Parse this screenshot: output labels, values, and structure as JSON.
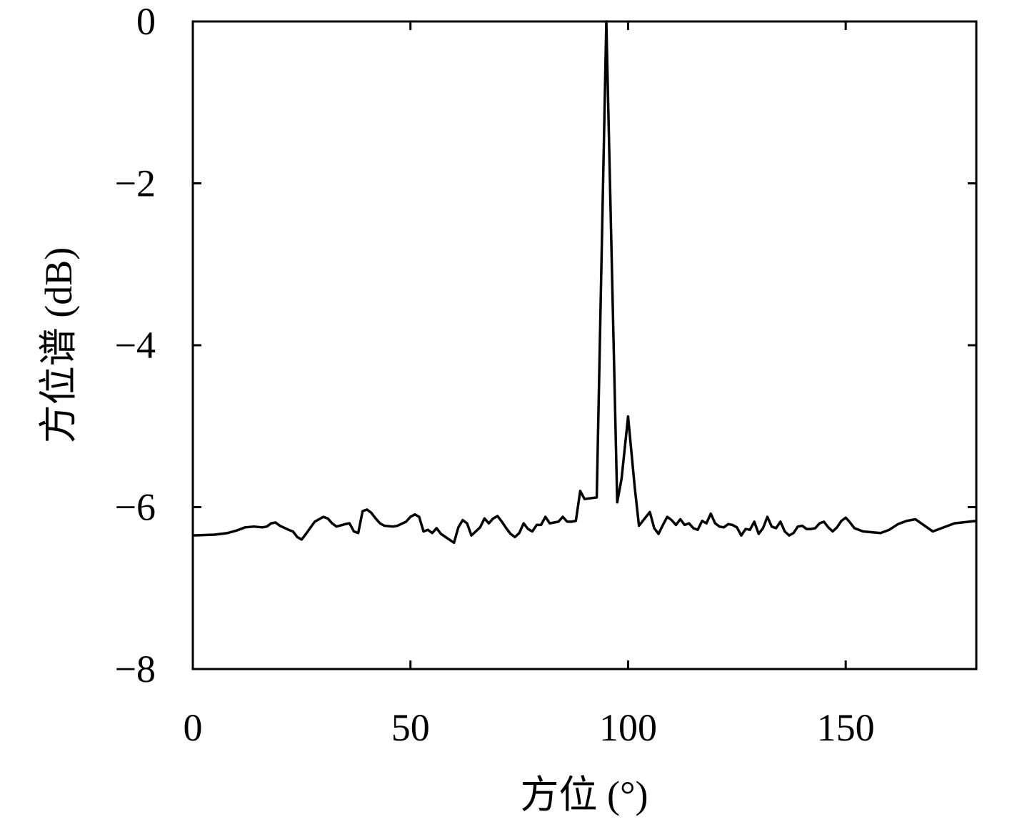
{
  "chart_data": {
    "type": "line",
    "xlabel": "方位 (°)",
    "ylabel": "方位谱 (dB)",
    "xlim": [
      0,
      180
    ],
    "ylim": [
      -8,
      0
    ],
    "xticks": [
      0,
      50,
      100,
      150
    ],
    "yticks": [
      {
        "value": -8,
        "label": "−8"
      },
      {
        "value": -6,
        "label": "−6"
      },
      {
        "value": -4,
        "label": "−4"
      },
      {
        "value": -2,
        "label": "−2"
      },
      0
    ],
    "grid": false,
    "series": [
      {
        "color": "#000000",
        "x": [
          0,
          5,
          8,
          10,
          12,
          14,
          16,
          17,
          18,
          19,
          20,
          22,
          23,
          24,
          25,
          26,
          28,
          29,
          30,
          31,
          32,
          33,
          35,
          36,
          37,
          38,
          39,
          40,
          41,
          42,
          43,
          44,
          46,
          47,
          49,
          50,
          51,
          52,
          53,
          54,
          55,
          56,
          57,
          60,
          61,
          62,
          63,
          64,
          65,
          66,
          67,
          68,
          69,
          70,
          71,
          72,
          73,
          74,
          75,
          76,
          77,
          78,
          79,
          80,
          81,
          82,
          83,
          84,
          85,
          86,
          87,
          88,
          89,
          90,
          92.8,
          95,
          97.5,
          98.5,
          100,
          101.5,
          102.5,
          105,
          106,
          107,
          108,
          109,
          110,
          111,
          112,
          113,
          114,
          115,
          116,
          117,
          118,
          119,
          120,
          121,
          122,
          123,
          124,
          125,
          126,
          127,
          128,
          129,
          130,
          131,
          132,
          133,
          134,
          135,
          136,
          137,
          138,
          139,
          140,
          141,
          142,
          143,
          144,
          145,
          146,
          147,
          148,
          149,
          150,
          151,
          152,
          154,
          156,
          158,
          160,
          162,
          164,
          166,
          170,
          175,
          180
        ],
        "values": [
          -6.35,
          -6.34,
          -6.32,
          -6.29,
          -6.25,
          -6.24,
          -6.25,
          -6.24,
          -6.2,
          -6.19,
          -6.23,
          -6.28,
          -6.3,
          -6.37,
          -6.4,
          -6.33,
          -6.18,
          -6.15,
          -6.12,
          -6.14,
          -6.2,
          -6.24,
          -6.21,
          -6.2,
          -6.3,
          -6.32,
          -6.05,
          -6.03,
          -6.07,
          -6.14,
          -6.2,
          -6.23,
          -6.24,
          -6.23,
          -6.18,
          -6.12,
          -6.09,
          -6.12,
          -6.3,
          -6.28,
          -6.32,
          -6.26,
          -6.33,
          -6.44,
          -6.25,
          -6.16,
          -6.2,
          -6.35,
          -6.3,
          -6.25,
          -6.14,
          -6.2,
          -6.14,
          -6.11,
          -6.18,
          -6.26,
          -6.33,
          -6.37,
          -6.32,
          -6.2,
          -6.27,
          -6.3,
          -6.22,
          -6.22,
          -6.12,
          -6.2,
          -6.19,
          -6.18,
          -6.12,
          -6.18,
          -6.18,
          -6.17,
          -5.8,
          -5.9,
          -5.88,
          0,
          -5.94,
          -5.65,
          -4.88,
          -5.74,
          -6.23,
          -6.06,
          -6.26,
          -6.33,
          -6.22,
          -6.12,
          -6.16,
          -6.22,
          -6.15,
          -6.22,
          -6.2,
          -6.26,
          -6.28,
          -6.17,
          -6.2,
          -6.08,
          -6.2,
          -6.24,
          -6.25,
          -6.21,
          -6.22,
          -6.25,
          -6.35,
          -6.27,
          -6.28,
          -6.18,
          -6.33,
          -6.26,
          -6.12,
          -6.24,
          -6.26,
          -6.18,
          -6.3,
          -6.35,
          -6.32,
          -6.24,
          -6.23,
          -6.27,
          -6.27,
          -6.26,
          -6.2,
          -6.18,
          -6.25,
          -6.3,
          -6.25,
          -6.17,
          -6.13,
          -6.19,
          -6.26,
          -6.3,
          -6.31,
          -6.32,
          -6.28,
          -6.21,
          -6.17,
          -6.15,
          -6.3,
          -6.2,
          -6.17
        ]
      }
    ]
  }
}
